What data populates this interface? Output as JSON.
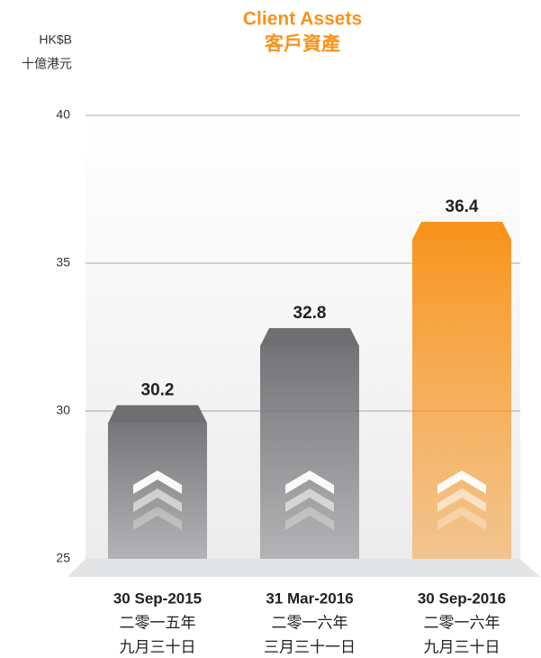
{
  "chart_data": {
    "type": "bar",
    "title": "Client Assets",
    "subtitle": "客戶資產",
    "y_label": [
      "HK$B",
      "十億港元"
    ],
    "categories": [
      [
        "30 Sep-2015",
        "二零一五年",
        "九月三十日"
      ],
      [
        "31 Mar-2016",
        "二零一六年",
        "三月三十一日"
      ],
      [
        "30 Sep-2016",
        "二零一六年",
        "九月三十日"
      ]
    ],
    "values": [
      30.2,
      32.8,
      36.4
    ],
    "colors": [
      "#6d6e71",
      "#6d6e71",
      "#f7941d"
    ],
    "ylim": [
      25,
      40
    ],
    "yticks": [
      25,
      30,
      35,
      40
    ],
    "grid": true
  }
}
